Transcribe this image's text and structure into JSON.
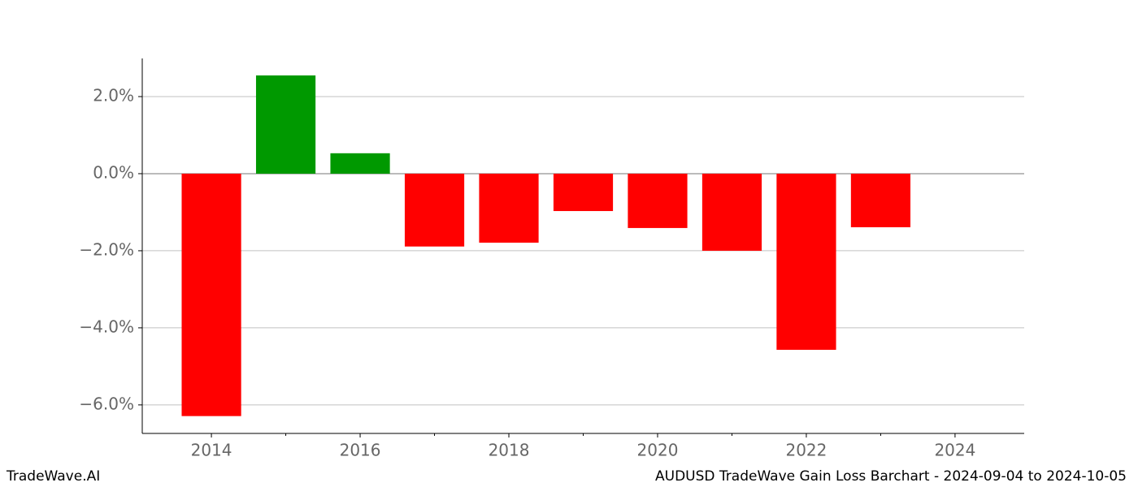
{
  "chart_data": {
    "type": "bar",
    "title": "AUDUSD TradeWave Gain Loss Barchart - 2024-09-04 to 2024-10-05",
    "watermark": "TradeWave.AI",
    "x": [
      2014,
      2015,
      2016,
      2017,
      2018,
      2019,
      2020,
      2021,
      2022,
      2023
    ],
    "values": [
      -6.29,
      2.55,
      0.53,
      -1.89,
      -1.79,
      -0.97,
      -1.41,
      -2.0,
      -4.57,
      -1.39
    ],
    "colors": [
      "#ff0000",
      "#009900",
      "#009900",
      "#ff0000",
      "#ff0000",
      "#ff0000",
      "#ff0000",
      "#ff0000",
      "#ff0000",
      "#ff0000"
    ],
    "xlim": [
      2013.07,
      2024.93
    ],
    "xticks": [
      2014,
      2016,
      2018,
      2020,
      2022,
      2024
    ],
    "xminorticks": [
      2015,
      2017,
      2019,
      2021,
      2023
    ],
    "ylim": [
      -6.74,
      2.99
    ],
    "yticks": [
      {
        "value": -6,
        "label": "−6.0%"
      },
      {
        "value": -4,
        "label": "−4.0%"
      },
      {
        "value": -2,
        "label": "−2.0%"
      },
      {
        "value": 0,
        "label": "0.0%"
      },
      {
        "value": 2,
        "label": "2.0%"
      }
    ],
    "grid": true
  }
}
